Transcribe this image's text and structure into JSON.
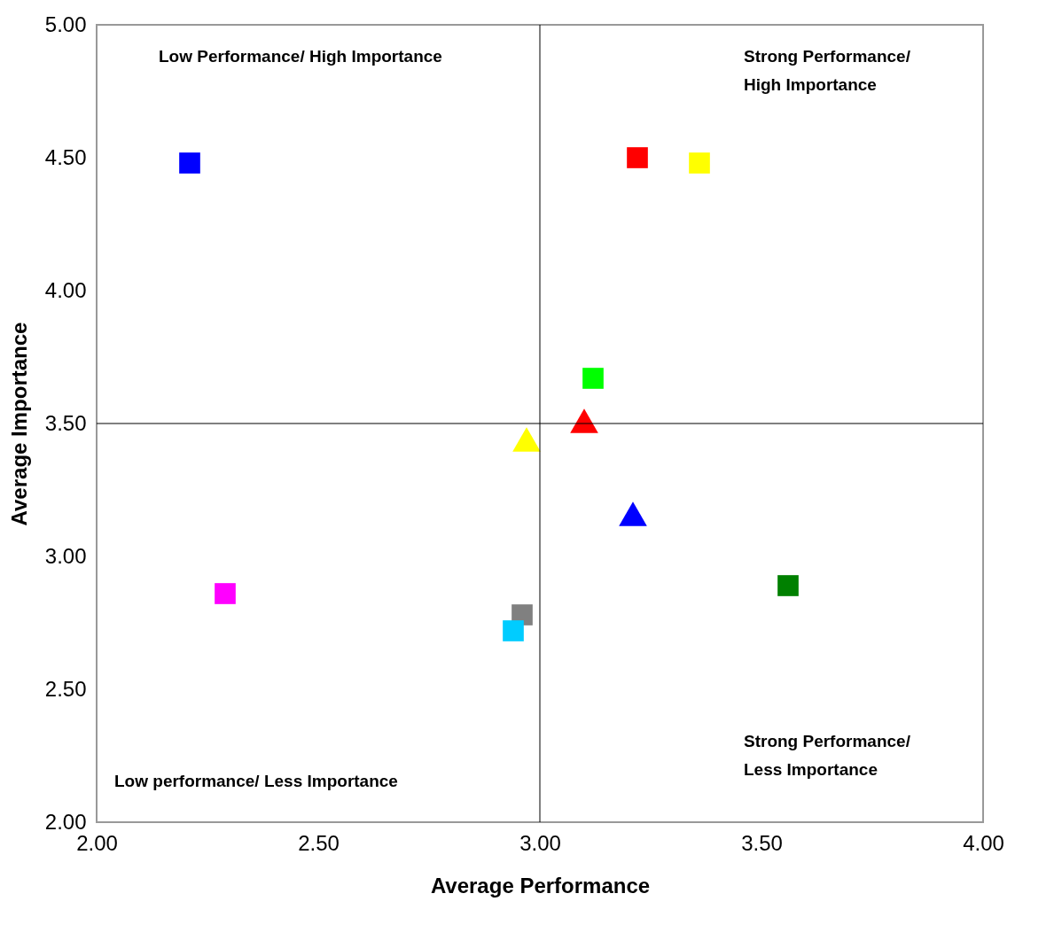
{
  "chart_data": {
    "type": "scatter",
    "xlabel": "Average Performance",
    "ylabel": "Average Importance",
    "xlim": [
      2,
      4
    ],
    "ylim": [
      2,
      5
    ],
    "xticks": [
      {
        "value": 2,
        "label": "2.00"
      },
      {
        "value": 2.5,
        "label": "2.50"
      },
      {
        "value": 3,
        "label": "3.00"
      },
      {
        "value": 3.5,
        "label": "3.50"
      },
      {
        "value": 4,
        "label": "4.00"
      }
    ],
    "yticks": [
      {
        "value": 2,
        "label": "2.00"
      },
      {
        "value": 2.5,
        "label": "2.50"
      },
      {
        "value": 3,
        "label": "3.00"
      },
      {
        "value": 3.5,
        "label": "3.50"
      },
      {
        "value": 4,
        "label": "4.00"
      },
      {
        "value": 4.5,
        "label": "4.50"
      },
      {
        "value": 5,
        "label": "5.00"
      }
    ],
    "grid": false,
    "legend": false,
    "series": [
      {
        "color": "#0000ff",
        "marker": "square",
        "x": [
          2.21
        ],
        "values": [
          4.48
        ]
      },
      {
        "color": "#ff0000",
        "marker": "square",
        "x": [
          3.22
        ],
        "values": [
          4.5
        ]
      },
      {
        "color": "#ffff00",
        "marker": "square",
        "x": [
          3.36
        ],
        "values": [
          4.48
        ]
      },
      {
        "color": "#00ff00",
        "marker": "square",
        "x": [
          3.12
        ],
        "values": [
          3.67
        ]
      },
      {
        "color": "#ff0000",
        "marker": "triangle",
        "x": [
          3.1
        ],
        "values": [
          3.51
        ]
      },
      {
        "color": "#ffff00",
        "marker": "triangle",
        "x": [
          2.97
        ],
        "values": [
          3.44
        ]
      },
      {
        "color": "#0000ff",
        "marker": "triangle",
        "x": [
          3.21
        ],
        "values": [
          3.16
        ]
      },
      {
        "color": "#008000",
        "marker": "square",
        "x": [
          3.56
        ],
        "values": [
          2.89
        ]
      },
      {
        "color": "#ff00ff",
        "marker": "square",
        "x": [
          2.29
        ],
        "values": [
          2.86
        ]
      },
      {
        "color": "#808080",
        "marker": "square",
        "x": [
          2.96
        ],
        "values": [
          2.78
        ]
      },
      {
        "color": "#00ccff",
        "marker": "square",
        "x": [
          2.94
        ],
        "values": [
          2.72
        ]
      }
    ],
    "ref_lines": [
      {
        "axis": "x",
        "value": 3,
        "color": "#000000"
      },
      {
        "axis": "y",
        "value": 3.5,
        "color": "#000000"
      }
    ],
    "annotations": [
      "Low Performance/  High Importance",
      "Strong Performance/\nHigh Importance",
      "Low performance/  Less Importance",
      "Strong Performance/\n Less Importance"
    ]
  }
}
